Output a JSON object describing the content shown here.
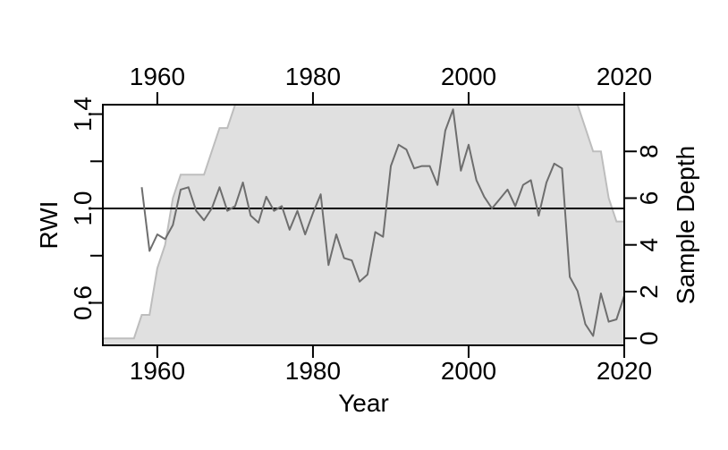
{
  "chart_data": {
    "type": "line",
    "title": "",
    "xlabel": "Year",
    "ylabel": "RWI",
    "y2label": "Sample Depth",
    "xlim": [
      1953,
      2020
    ],
    "ylim": [
      0.42,
      1.44
    ],
    "y2lim": [
      -0.3,
      10
    ],
    "xticks": [
      1960,
      1980,
      2000,
      2020
    ],
    "xtick_labels": [
      "1960",
      "1980",
      "2000",
      "2020"
    ],
    "yticks": [
      0.6,
      0.8,
      1.0,
      1.2,
      1.4
    ],
    "ytick_labels": [
      "0.6",
      "",
      "1.0",
      "",
      "1.4"
    ],
    "y2ticks": [
      0,
      2,
      4,
      6,
      8
    ],
    "y2tick_labels": [
      "0",
      "2",
      "4",
      "6",
      "8"
    ],
    "reference_line": 1.0,
    "grid": false,
    "colors": {
      "rwi_line": "#6e6e6e",
      "depth_fill": "#e0e0e0",
      "depth_edge": "#bdbdbd",
      "reference": "#000000"
    },
    "series": [
      {
        "kind": "line",
        "axis": "left",
        "x": [
          1958,
          1959,
          1960,
          1961,
          1962,
          1963,
          1964,
          1965,
          1966,
          1967,
          1968,
          1969,
          1970,
          1971,
          1972,
          1973,
          1974,
          1975,
          1976,
          1977,
          1978,
          1979,
          1980,
          1981,
          1982,
          1983,
          1984,
          1985,
          1986,
          1987,
          1988,
          1989,
          1990,
          1991,
          1992,
          1993,
          1994,
          1995,
          1996,
          1997,
          1998,
          1999,
          2000,
          2001,
          2002,
          2003,
          2004,
          2005,
          2006,
          2007,
          2008,
          2009,
          2010,
          2011,
          2012,
          2013,
          2014,
          2015,
          2016,
          2017,
          2018,
          2019,
          2020
        ],
        "values": [
          1.09,
          0.82,
          0.89,
          0.87,
          0.93,
          1.08,
          1.09,
          0.99,
          0.95,
          1.0,
          1.09,
          0.99,
          1.01,
          1.11,
          0.97,
          0.94,
          1.05,
          0.99,
          1.01,
          0.91,
          0.99,
          0.89,
          0.98,
          1.06,
          0.76,
          0.89,
          0.79,
          0.78,
          0.69,
          0.72,
          0.9,
          0.88,
          1.18,
          1.27,
          1.25,
          1.17,
          1.18,
          1.18,
          1.1,
          1.33,
          1.42,
          1.16,
          1.27,
          1.12,
          1.05,
          1.0,
          1.04,
          1.08,
          1.01,
          1.1,
          1.12,
          0.97,
          1.11,
          1.19,
          1.17,
          0.71,
          0.65,
          0.51,
          0.46,
          0.64,
          0.52,
          0.53,
          0.63
        ]
      },
      {
        "kind": "area",
        "axis": "right",
        "x": [
          1953,
          1957,
          1958,
          1959,
          1960,
          1961,
          1962,
          1963,
          1964,
          1965,
          1966,
          1967,
          1968,
          1969,
          1970,
          1971,
          2014,
          2015,
          2016,
          2017,
          2018,
          2019,
          2020
        ],
        "values": [
          0,
          0,
          1,
          1,
          3,
          4,
          6,
          7,
          7,
          7,
          7,
          8,
          9,
          9,
          10,
          10,
          10,
          9,
          8,
          8,
          6,
          5,
          5
        ]
      }
    ]
  }
}
